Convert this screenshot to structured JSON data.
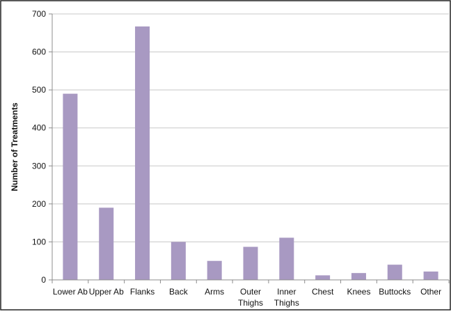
{
  "chart_data": {
    "type": "bar",
    "title": "",
    "xlabel": "",
    "ylabel": "Number of Treatments",
    "ylim": [
      0,
      700
    ],
    "yticks": [
      0,
      100,
      200,
      300,
      400,
      500,
      600,
      700
    ],
    "grid": true,
    "categories": [
      [
        "Lower Ab"
      ],
      [
        "Upper Ab"
      ],
      [
        "Flanks"
      ],
      [
        "Back"
      ],
      [
        "Arms"
      ],
      [
        "Outer",
        "Thighs"
      ],
      [
        "Inner",
        "Thighs"
      ],
      [
        "Chest"
      ],
      [
        "Knees"
      ],
      [
        "Buttocks"
      ],
      [
        "Other"
      ]
    ],
    "values": [
      490,
      190,
      667,
      100,
      50,
      87,
      111,
      12,
      18,
      40,
      22
    ],
    "colors": {
      "bar": "#a899c2",
      "grid": "#c8c8c8",
      "axis": "#8c8c8c",
      "frame": "#222222"
    }
  }
}
